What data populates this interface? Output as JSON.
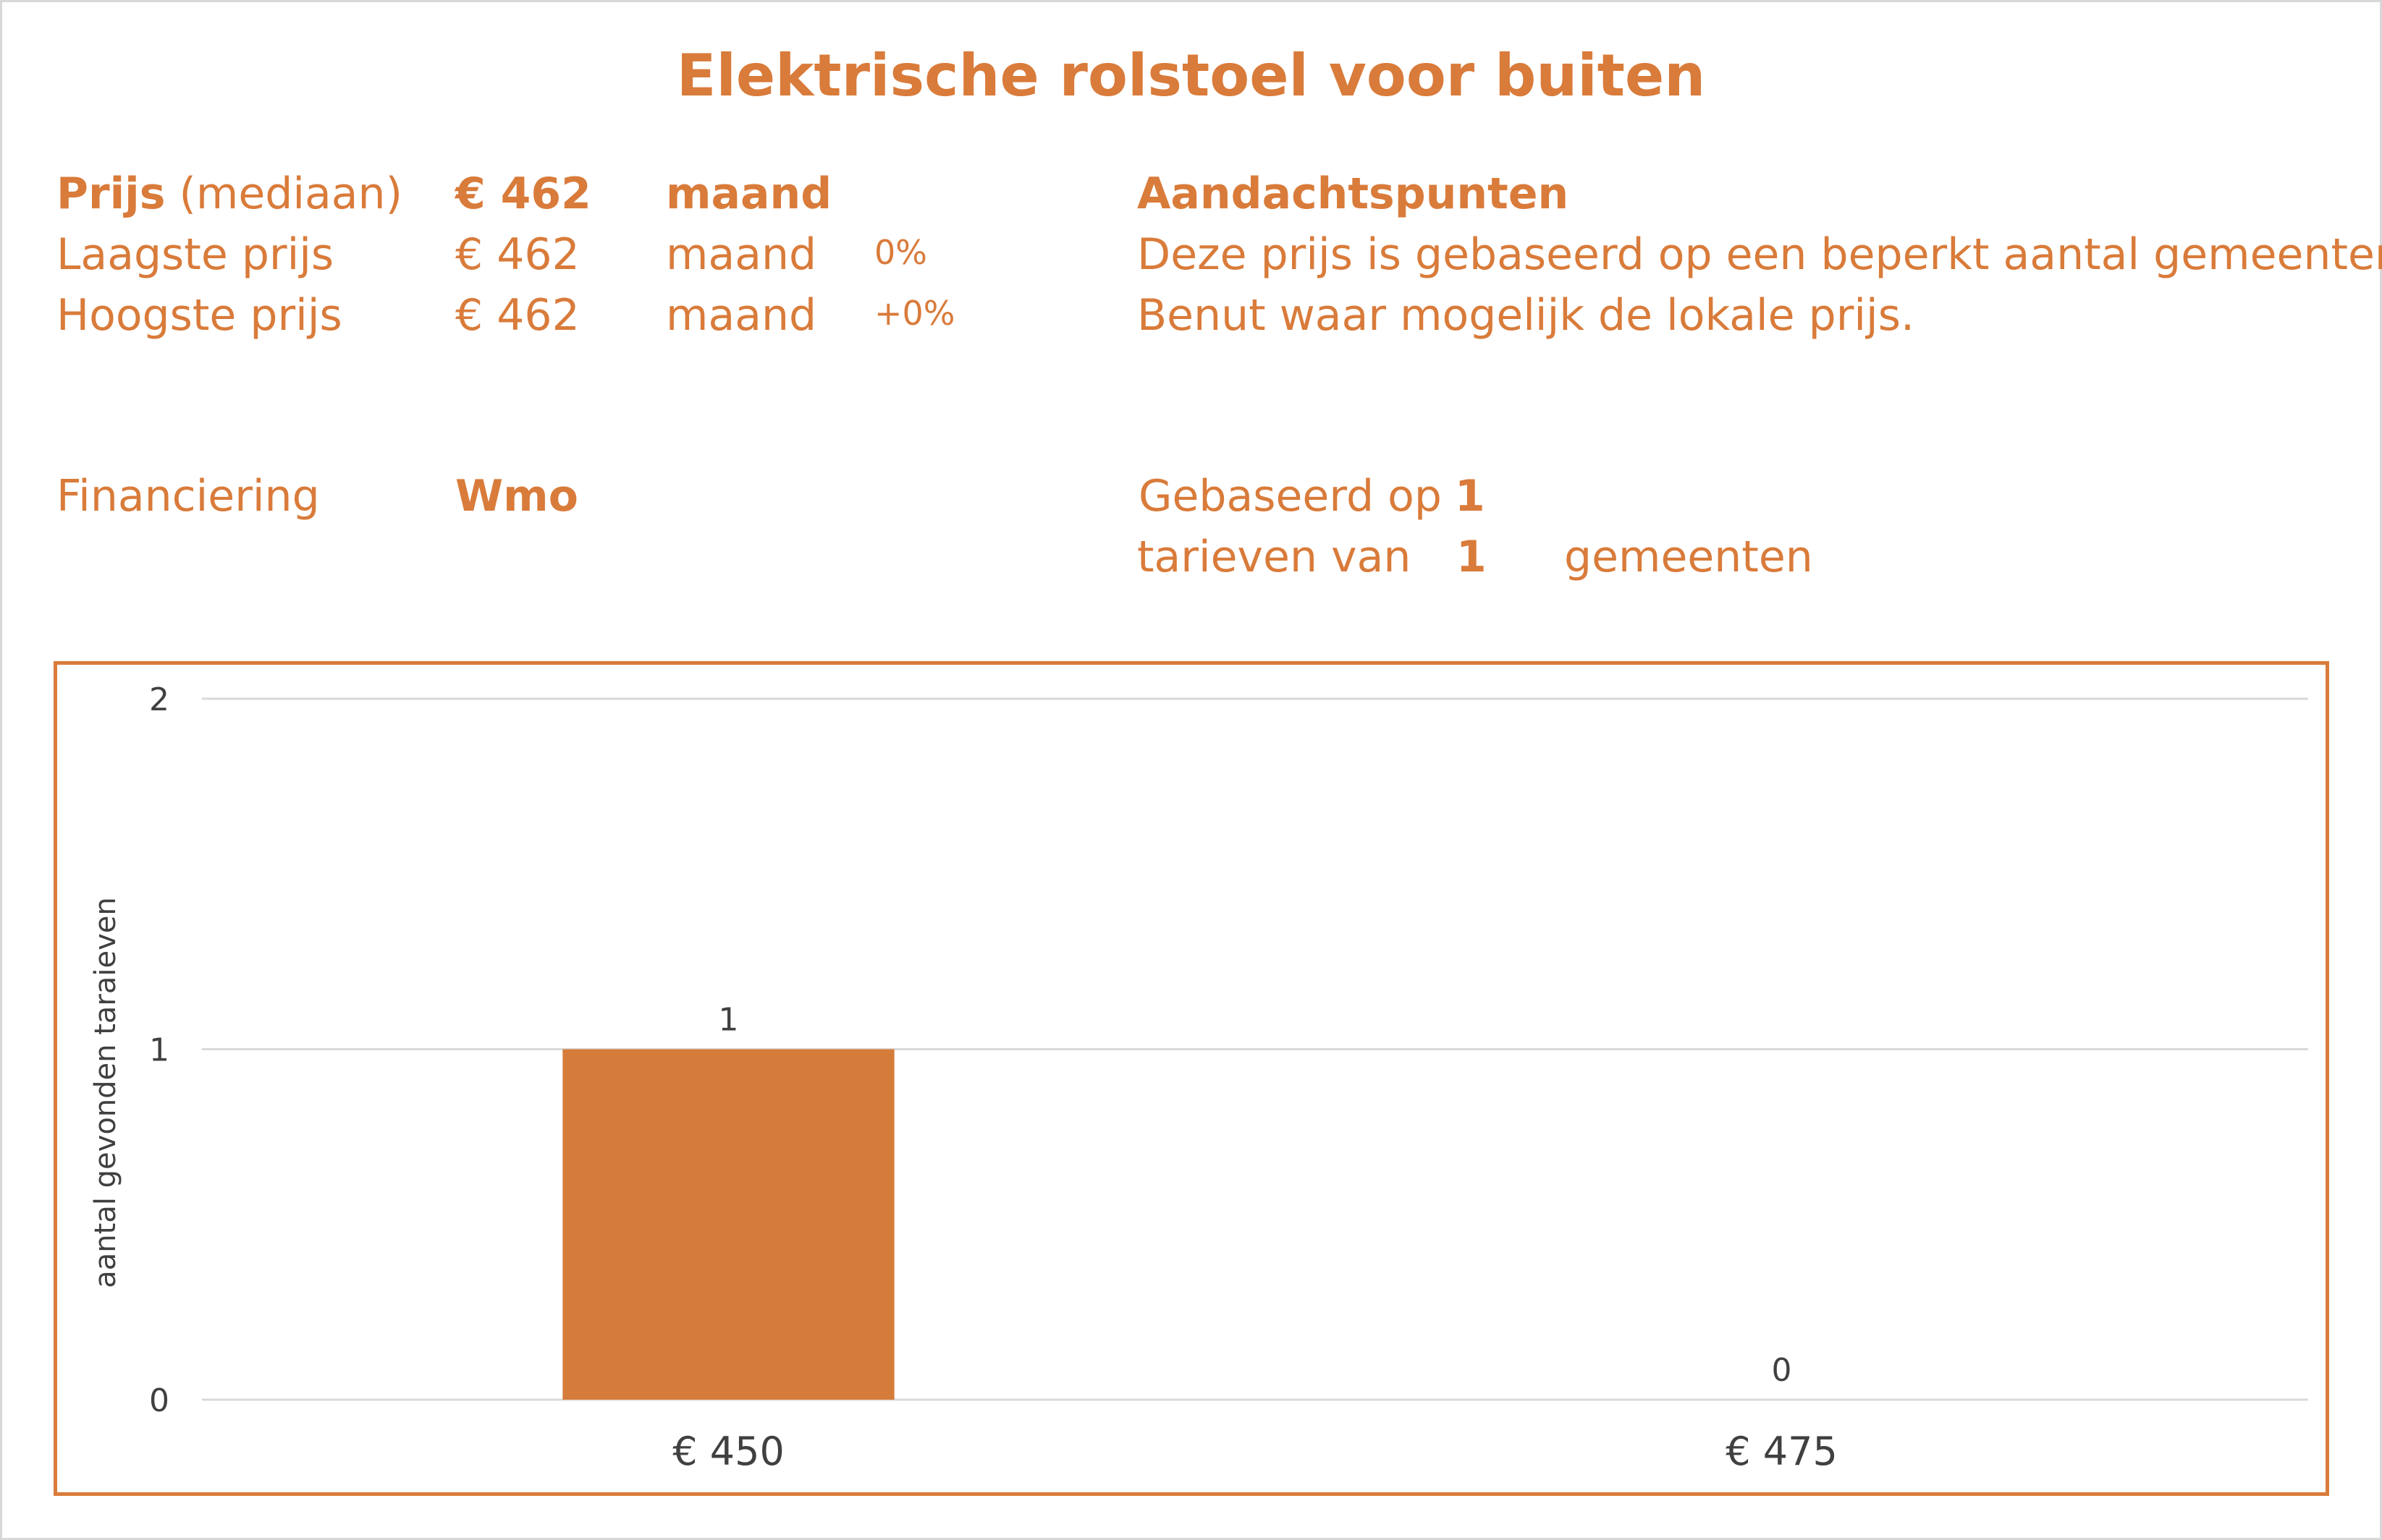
{
  "title": "Elektrische rolstoel voor buiten",
  "summary": {
    "price_label": "Prijs",
    "price_label_suffix": "(mediaan)",
    "price_value": "€ 462",
    "price_unit": "maand",
    "low_label": "Laagste prijs",
    "low_value": "€ 462",
    "low_unit": "maand",
    "low_pct": "0%",
    "high_label": "Hoogste prijs",
    "high_value": "€ 462",
    "high_unit": "maand",
    "high_pct": "+0%",
    "financing_label": "Financiering",
    "financing_value": "Wmo"
  },
  "notes": {
    "heading": "Aandachtspunten",
    "line1": "Deze prijs is gebaseerd op een beperkt aantal gemeenten.",
    "line2": "Benut waar mogelijk de lokale prijs.",
    "based_on_label": "Gebaseerd op",
    "based_on_value": "1",
    "tariffs_label": "tarieven van",
    "municipalities_value": "1",
    "municipalities_label": "gemeenten"
  },
  "colors": {
    "accent": "#d97b3a",
    "bar": "#d67c3a",
    "grid": "#d9d9d9",
    "axis_text": "#404040"
  },
  "chart_data": {
    "type": "bar",
    "categories": [
      "€ 450",
      "€ 475"
    ],
    "values": [
      1,
      0
    ],
    "data_labels": [
      "1",
      "0"
    ],
    "title": "",
    "xlabel": "",
    "ylabel": "aantal gevonden taraieven",
    "ylim": [
      0,
      2
    ],
    "yticks": [
      "0",
      "1",
      "2"
    ],
    "grid": true,
    "legend": "none"
  }
}
